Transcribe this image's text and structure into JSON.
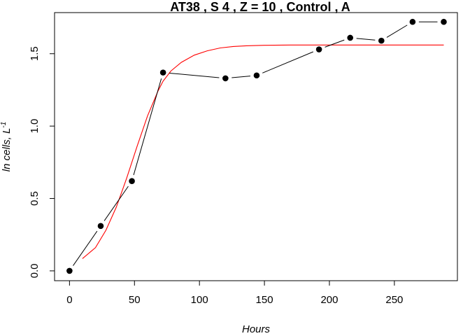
{
  "chart_data": {
    "type": "line",
    "title": "AT38 , S 4 , Z = 10 , Control , A",
    "xlabel": "Hours",
    "ylabel": "ln cells, L",
    "ylabel_superscript": "-1",
    "xlim": [
      -11.5,
      298.5
    ],
    "ylim": [
      -0.068,
      1.784
    ],
    "x_ticks": [
      0,
      50,
      100,
      150,
      200,
      250
    ],
    "y_ticks": [
      0.0,
      0.5,
      1.0,
      1.5
    ],
    "x_tick_labels": [
      "0",
      "50",
      "100",
      "150",
      "200",
      "250"
    ],
    "y_tick_labels": [
      "0.0",
      "0.5",
      "1.0",
      "1.5"
    ],
    "grid": false,
    "series": [
      {
        "style": "points-with-lines",
        "color": "#000000",
        "x": [
          0,
          24,
          48,
          72,
          120,
          144,
          192,
          216,
          240,
          264,
          288
        ],
        "y": [
          0.0,
          0.31,
          0.62,
          1.37,
          1.33,
          1.35,
          1.53,
          1.61,
          1.59,
          1.72,
          1.72
        ]
      },
      {
        "style": "line",
        "color": "#ff0000",
        "x": [
          10,
          20,
          28,
          36,
          44,
          52,
          60,
          68,
          72,
          78,
          86,
          96,
          106,
          116,
          126,
          136,
          150,
          170,
          200,
          240,
          288
        ],
        "y": [
          0.085,
          0.16,
          0.28,
          0.44,
          0.64,
          0.86,
          1.07,
          1.24,
          1.31,
          1.38,
          1.44,
          1.49,
          1.52,
          1.54,
          1.55,
          1.555,
          1.558,
          1.56,
          1.56,
          1.56,
          1.56
        ]
      }
    ]
  }
}
